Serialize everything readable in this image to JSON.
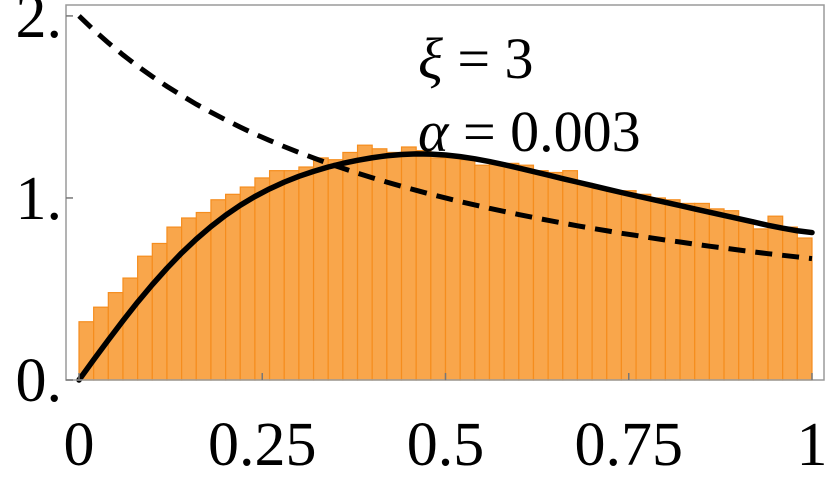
{
  "chart_data": {
    "type": "histogram-with-lines",
    "title": "",
    "xlabel": "",
    "ylabel": "",
    "xlim": [
      0,
      1
    ],
    "ylim": [
      0,
      2.06
    ],
    "x_ticks": [
      {
        "value": 0,
        "label": "0"
      },
      {
        "value": 0.25,
        "label": "0.25"
      },
      {
        "value": 0.5,
        "label": "0.5"
      },
      {
        "value": 0.75,
        "label": "0.75"
      },
      {
        "value": 1,
        "label": "1"
      }
    ],
    "y_ticks": [
      {
        "value": 0,
        "label": "0."
      },
      {
        "value": 1,
        "label": "1."
      },
      {
        "value": 2,
        "label": "2."
      }
    ],
    "annotations": [
      {
        "symbol": "ξ",
        "text": " = 3"
      },
      {
        "symbol": "α",
        "text": " = 0.003"
      }
    ],
    "histogram": {
      "bin_width": 0.02,
      "bin_starts": [
        0,
        0.02,
        0.04,
        0.06,
        0.08,
        0.1,
        0.12,
        0.14,
        0.16,
        0.18,
        0.2,
        0.22,
        0.24,
        0.26,
        0.28,
        0.3,
        0.32,
        0.34,
        0.36,
        0.38,
        0.4,
        0.42,
        0.44,
        0.46,
        0.48,
        0.5,
        0.52,
        0.54,
        0.56,
        0.58,
        0.6,
        0.62,
        0.64,
        0.66,
        0.68,
        0.7,
        0.72,
        0.74,
        0.76,
        0.78,
        0.8,
        0.82,
        0.84,
        0.86,
        0.88,
        0.9,
        0.92,
        0.94,
        0.96,
        0.98
      ],
      "values": [
        0.32,
        0.4,
        0.48,
        0.56,
        0.68,
        0.75,
        0.84,
        0.89,
        0.92,
        0.99,
        1.02,
        1.06,
        1.11,
        1.15,
        1.15,
        1.17,
        1.22,
        1.21,
        1.25,
        1.29,
        1.27,
        1.25,
        1.28,
        1.26,
        1.22,
        1.22,
        1.21,
        1.18,
        1.19,
        1.19,
        1.18,
        1.15,
        1.14,
        1.15,
        1.08,
        1.05,
        1.04,
        1.04,
        1.02,
        1.0,
        0.99,
        0.97,
        0.97,
        0.94,
        0.93,
        0.88,
        0.83,
        0.9,
        0.84,
        0.78
      ]
    },
    "series": [
      {
        "style": "solid",
        "x": [
          0,
          0.02,
          0.04,
          0.06,
          0.08,
          0.1,
          0.12,
          0.14,
          0.16,
          0.18,
          0.2,
          0.22,
          0.24,
          0.26,
          0.28,
          0.3,
          0.32,
          0.34,
          0.36,
          0.38,
          0.4,
          0.42,
          0.44,
          0.46,
          0.48,
          0.5,
          0.52,
          0.54,
          0.56,
          0.58,
          0.6,
          0.62,
          0.64,
          0.66,
          0.68,
          0.7,
          0.72,
          0.74,
          0.76,
          0.78,
          0.8,
          0.82,
          0.84,
          0.86,
          0.88,
          0.9,
          0.92,
          0.94,
          0.96,
          0.98,
          1.0
        ],
        "y": [
          0.0,
          0.111,
          0.22,
          0.326,
          0.428,
          0.524,
          0.614,
          0.698,
          0.774,
          0.843,
          0.905,
          0.96,
          1.008,
          1.05,
          1.087,
          1.119,
          1.146,
          1.17,
          1.19,
          1.207,
          1.221,
          1.232,
          1.239,
          1.242,
          1.241,
          1.236,
          1.227,
          1.215,
          1.2,
          1.183,
          1.164,
          1.145,
          1.126,
          1.106,
          1.087,
          1.068,
          1.049,
          1.03,
          1.012,
          0.994,
          0.976,
          0.958,
          0.94,
          0.922,
          0.904,
          0.886,
          0.868,
          0.85,
          0.834,
          0.82,
          0.81
        ]
      },
      {
        "style": "dashed",
        "x": [
          0,
          0.02,
          0.04,
          0.06,
          0.08,
          0.1,
          0.12,
          0.14,
          0.16,
          0.18,
          0.2,
          0.22,
          0.24,
          0.26,
          0.28,
          0.3,
          0.32,
          0.34,
          0.36,
          0.38,
          0.4,
          0.42,
          0.44,
          0.46,
          0.48,
          0.5,
          0.52,
          0.54,
          0.56,
          0.58,
          0.6,
          0.62,
          0.64,
          0.66,
          0.68,
          0.7,
          0.72,
          0.74,
          0.76,
          0.78,
          0.8,
          0.82,
          0.84,
          0.86,
          0.88,
          0.9,
          0.92,
          0.94,
          0.96,
          0.98,
          1.0
        ],
        "y": [
          2.0,
          1.923,
          1.852,
          1.786,
          1.724,
          1.667,
          1.613,
          1.563,
          1.515,
          1.471,
          1.429,
          1.389,
          1.351,
          1.316,
          1.282,
          1.25,
          1.22,
          1.19,
          1.163,
          1.136,
          1.111,
          1.087,
          1.064,
          1.042,
          1.02,
          1.0,
          0.98,
          0.962,
          0.943,
          0.926,
          0.909,
          0.893,
          0.877,
          0.862,
          0.847,
          0.833,
          0.82,
          0.806,
          0.794,
          0.781,
          0.769,
          0.758,
          0.746,
          0.735,
          0.725,
          0.714,
          0.704,
          0.694,
          0.685,
          0.676,
          0.667
        ]
      }
    ],
    "grid": false,
    "colors": {
      "bar_fill": "#f9a64b",
      "bar_edge": "#f58d1e",
      "lines": "#000000"
    }
  }
}
